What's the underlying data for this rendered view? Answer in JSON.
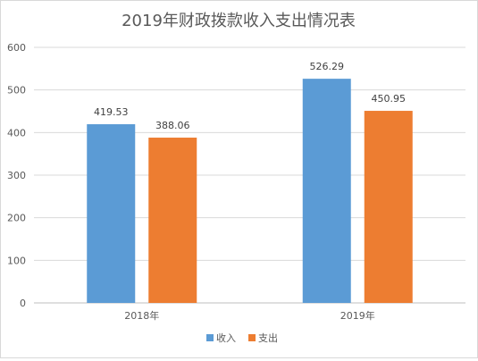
{
  "chart_data": {
    "type": "bar",
    "title": "2019年财政拨款收入支出情况表",
    "categories": [
      "2018年",
      "2019年"
    ],
    "series": [
      {
        "name": "收入",
        "values": [
          419.53,
          526.29
        ],
        "color": "#5b9bd5"
      },
      {
        "name": "支出",
        "values": [
          388.06,
          450.95
        ],
        "color": "#ed7d31"
      }
    ],
    "ylim": [
      0,
      600
    ],
    "yticks": [
      0,
      100,
      200,
      300,
      400,
      500,
      600
    ],
    "grid": true,
    "legend": "bottom"
  }
}
